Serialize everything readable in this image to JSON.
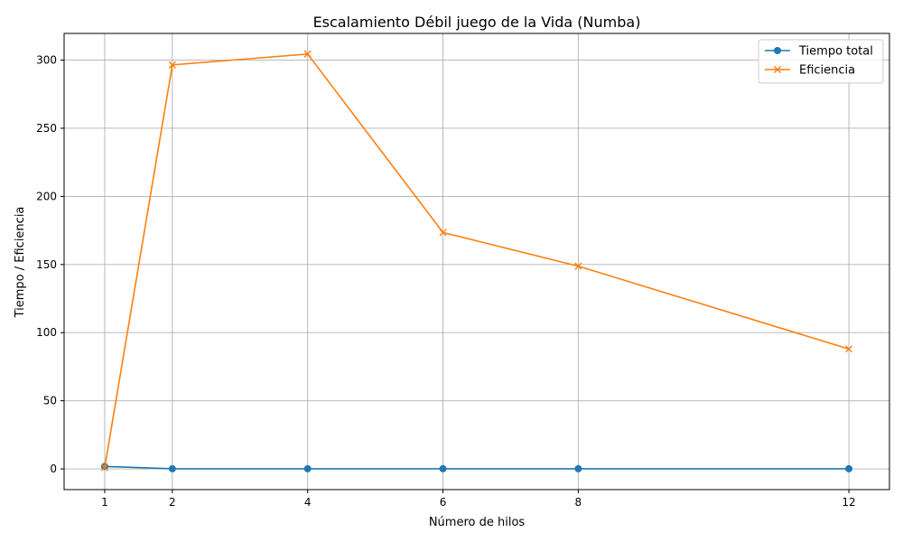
{
  "chart_data": {
    "type": "line",
    "title": "Escalamiento Débil juego de la Vida (Numba)",
    "xlabel": "Número de hilos",
    "ylabel": "Tiempo / Eficiencia",
    "x": [
      1,
      2,
      4,
      6,
      8,
      12
    ],
    "xticks": [
      "1",
      "2",
      "4",
      "6",
      "8",
      "12"
    ],
    "yticks": [
      "0",
      "50",
      "100",
      "150",
      "200",
      "250",
      "300"
    ],
    "xlim": [
      0.4,
      12.6
    ],
    "ylim": [
      -15.2,
      319.6
    ],
    "grid": true,
    "legend_position": "top-right",
    "series": [
      {
        "name": "Tiempo total",
        "values": [
          1.8,
          0.1,
          0.1,
          0.1,
          0.1,
          0.1
        ],
        "color": "#1f77b4",
        "marker": "circle"
      },
      {
        "name": "Eficiencia",
        "values": [
          1.0,
          296.5,
          304.5,
          173.5,
          148.8,
          88.0
        ],
        "color": "#ff7f0e",
        "marker": "x"
      }
    ]
  }
}
